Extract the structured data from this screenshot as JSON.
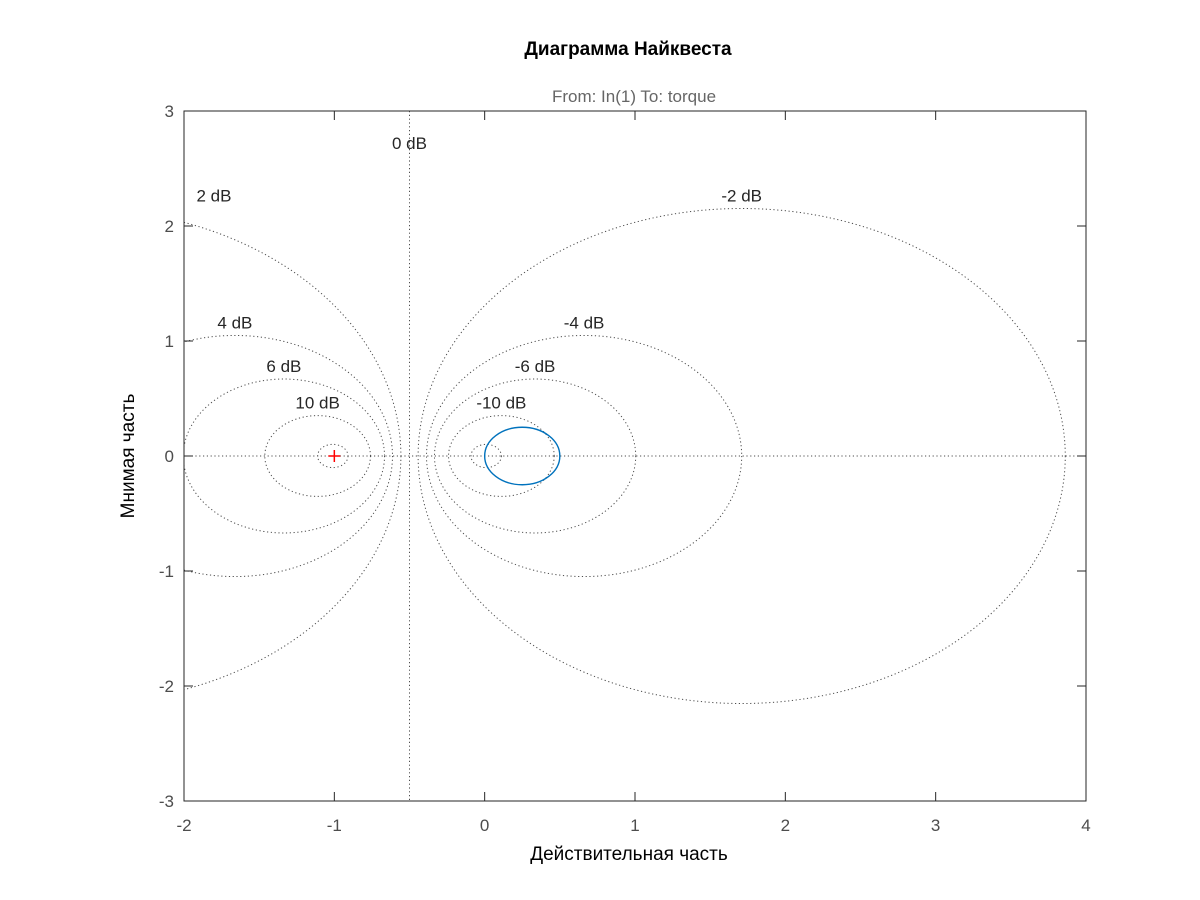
{
  "chart_data": {
    "type": "line",
    "title": "Диаграмма Найквеста",
    "subtitle": "From: In(1)  To: torque",
    "xlabel": "Действительная часть",
    "ylabel": "Мнимая часть",
    "xlim": [
      -2,
      4
    ],
    "ylim": [
      -3,
      3
    ],
    "x_ticks": [
      -2,
      -1,
      0,
      1,
      2,
      3,
      4
    ],
    "y_ticks": [
      -3,
      -2,
      -1,
      0,
      1,
      2,
      3
    ],
    "grid": "M-circles",
    "m_circle_levels_db": [
      -10,
      -6,
      -4,
      -2,
      0,
      2,
      4,
      6,
      10,
      20,
      -20
    ],
    "m_circle_labels": [
      {
        "text": "0 dB",
        "db": 0
      },
      {
        "text": "2 dB",
        "db": 2
      },
      {
        "text": "-2 dB",
        "db": -2
      },
      {
        "text": "4 dB",
        "db": 4
      },
      {
        "text": "-4 dB",
        "db": -4
      },
      {
        "text": "6 dB",
        "db": 6
      },
      {
        "text": "-6 dB",
        "db": -6
      },
      {
        "text": "10 dB",
        "db": 10
      },
      {
        "text": "-10 dB",
        "db": -10
      }
    ],
    "critical_point": {
      "x": -1,
      "y": 0,
      "marker": "+",
      "color": "#ff0000"
    },
    "series": [
      {
        "color": "#0072bd",
        "shape": "closed curve",
        "center": [
          0.25,
          0
        ],
        "radius_x": 0.25,
        "radius_y": 0.25
      }
    ],
    "colors": {
      "axes": "#262626",
      "tick_text": "#4d4d4d",
      "grid": "#4d4d4d",
      "curve": "#0072bd",
      "critical": "#ff0000"
    }
  }
}
